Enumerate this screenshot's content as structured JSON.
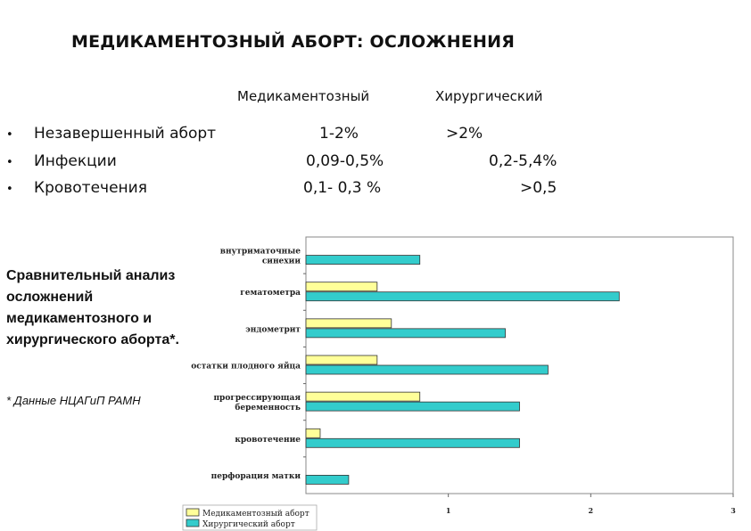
{
  "title": "МЕДИКАМЕНТОЗНЫЙ АБОРТ: ОСЛОЖНЕНИЯ",
  "table": {
    "columns": [
      "Медикаментозный",
      "Хирургический"
    ],
    "rows": [
      {
        "label": "Незавершенный аборт",
        "medical": "1-2%",
        "surgical": ">2%"
      },
      {
        "label": "Инфекции",
        "medical": "0,09-0,5%",
        "surgical": "0,2-5,4%"
      },
      {
        "label": "Кровотечения",
        "medical": "0,1- 0,3 %",
        "surgical": ">0,5"
      }
    ]
  },
  "side_note": [
    "Сравнительный анализ",
    "осложнений",
    "медикаментозного и",
    "хирургического аборта*."
  ],
  "footnote": "* Данные НЦАГиП РАМН",
  "colors": {
    "medical": "#ffff99",
    "surgical": "#33cccc",
    "bar_border": "#333333"
  },
  "chart_data": {
    "type": "bar",
    "orientation": "horizontal",
    "categories": [
      [
        "внутриматочные",
        "синехии"
      ],
      [
        "гематометра"
      ],
      [
        "эндометрит"
      ],
      [
        "остатки плодного яйца"
      ],
      [
        "прогрессирующая",
        "беременность"
      ],
      [
        "кровотечение"
      ],
      [
        "перфорация матки"
      ]
    ],
    "series": [
      {
        "name": "Медикаментозный аборт",
        "values": [
          0,
          0.5,
          0.6,
          0.5,
          0.8,
          0.1,
          0
        ]
      },
      {
        "name": "Хирургический аборт",
        "values": [
          0.8,
          2.2,
          1.4,
          1.7,
          1.5,
          1.5,
          0.3
        ]
      }
    ],
    "xlim": [
      0,
      3
    ],
    "x_ticks": [
      "1",
      "2",
      "3"
    ],
    "legend_position": "bottom-left"
  }
}
